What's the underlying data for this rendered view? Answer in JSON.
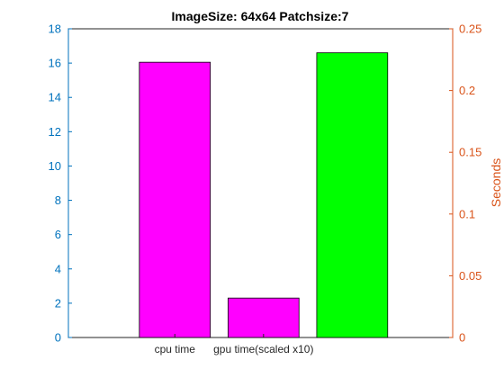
{
  "chart_data": {
    "type": "bar",
    "title": "ImageSize: 64x64 Patchsize:7",
    "categories": [
      "cpu time",
      "gpu time(scaled x10)",
      ""
    ],
    "values": [
      16.05,
      2.3,
      16.6
    ],
    "bar_colors": [
      "#ff00ff",
      "#ff00ff",
      "#00ff00"
    ],
    "left_axis": {
      "label": "",
      "ylim": [
        0,
        18
      ],
      "ticks": [
        "0",
        "2",
        "4",
        "6",
        "8",
        "10",
        "12",
        "14",
        "16",
        "18"
      ],
      "color": "#0072bd"
    },
    "right_axis": {
      "label": "Seconds",
      "ylim": [
        0,
        0.25
      ],
      "ticks": [
        "0",
        "0.05",
        "0.1",
        "0.15",
        "0.2",
        "0.25"
      ],
      "color": "#d95319"
    },
    "xlim": [
      0,
      4.333
    ],
    "x_positions": [
      1.2,
      2.2,
      3.2
    ],
    "bar_width": 0.8,
    "grid": false,
    "legend": "none"
  }
}
